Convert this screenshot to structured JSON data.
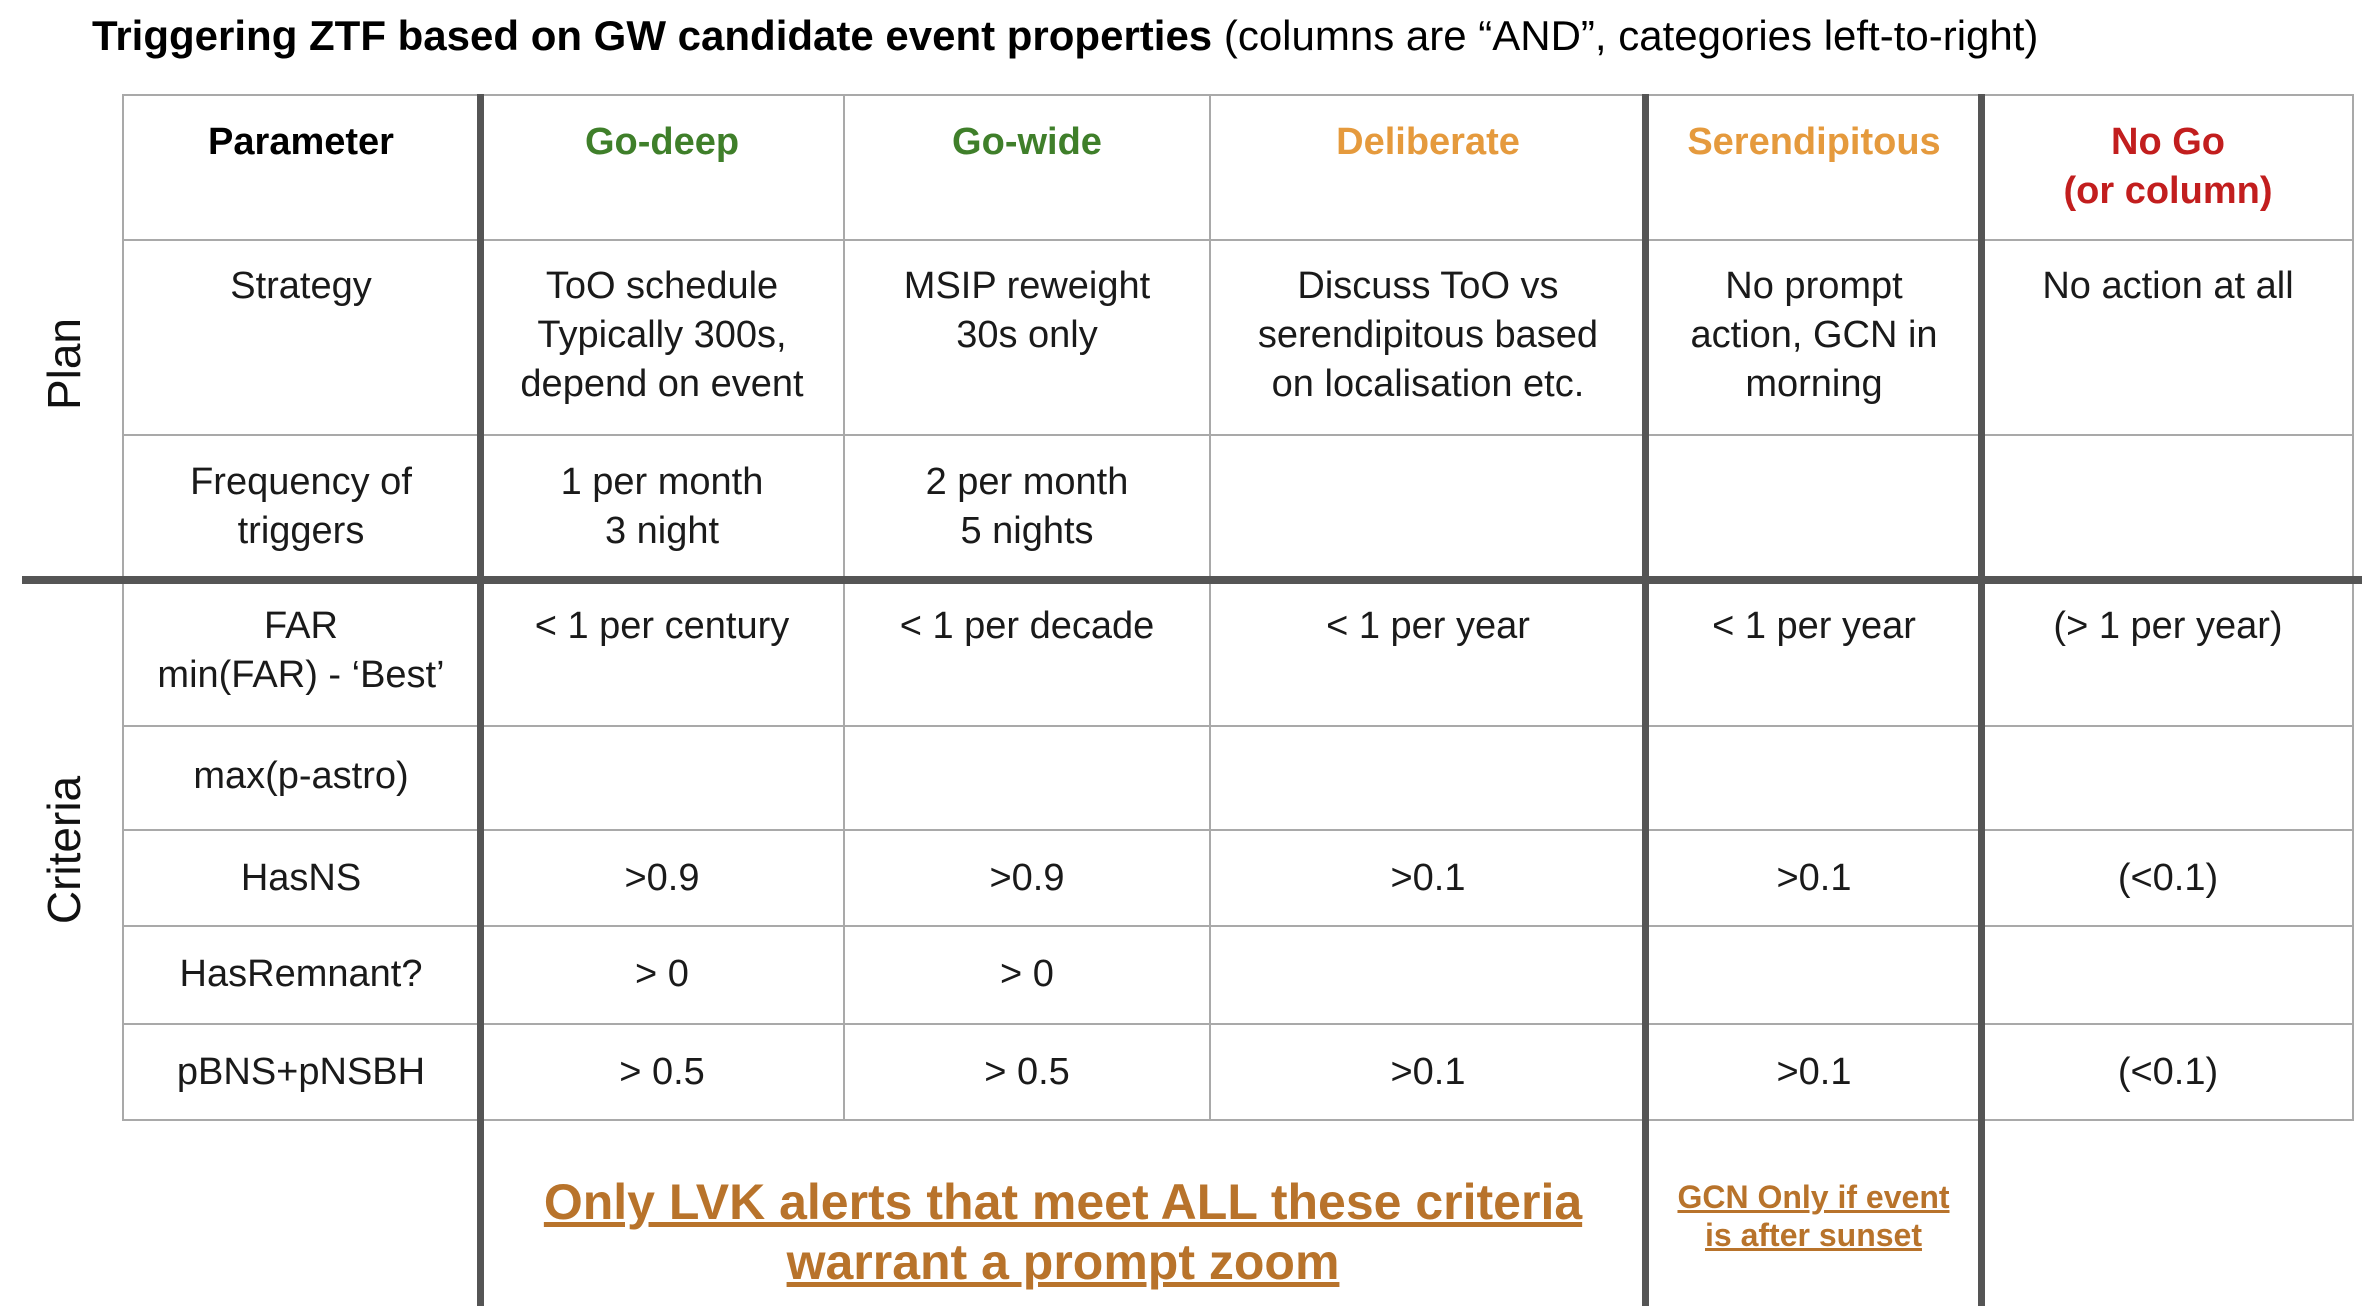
{
  "title": {
    "bold": "Triggering ZTF based on GW candidate event properties",
    "rest": " (columns are “AND”, categories left-to-right)"
  },
  "row_groups": {
    "plan": "Plan",
    "criteria": "Criteria"
  },
  "headers": {
    "parameter": "Parameter",
    "go_deep": "Go-deep",
    "go_wide": "Go-wide",
    "deliberate": "Deliberate",
    "serendipitous": "Serendipitous",
    "no_go": "No Go\n(or column)"
  },
  "rows": {
    "strategy": {
      "label": "Strategy",
      "go_deep": "ToO schedule\nTypically 300s,\ndepend on event",
      "go_wide": "MSIP reweight\n30s only",
      "deliberate": "Discuss ToO vs\nserendipitous based\non localisation etc.",
      "serendipitous": "No prompt\naction, GCN in\nmorning",
      "no_go": "No action at all"
    },
    "frequency": {
      "label": "Frequency of\ntriggers",
      "go_deep": "1 per month\n3 night",
      "go_wide": "2 per month\n5 nights",
      "deliberate": "",
      "serendipitous": "",
      "no_go": ""
    },
    "far": {
      "label": "FAR\nmin(FAR) - ‘Best’",
      "go_deep": "< 1 per century",
      "go_wide": "< 1 per decade",
      "deliberate": "< 1 per year",
      "serendipitous": "< 1 per year",
      "no_go": "(> 1 per year)"
    },
    "pastro": {
      "label": "max(p-astro)",
      "go_deep": "",
      "go_wide": "",
      "deliberate": "",
      "serendipitous": "",
      "no_go": ""
    },
    "hasns": {
      "label": "HasNS",
      "go_deep": ">0.9",
      "go_wide": ">0.9",
      "deliberate": ">0.1",
      "serendipitous": ">0.1",
      "no_go": "(<0.1)"
    },
    "hasremnant": {
      "label": "HasRemnant?",
      "go_deep": "> 0",
      "go_wide": "> 0",
      "deliberate": "",
      "serendipitous": "",
      "no_go": ""
    },
    "pbns": {
      "label": "pBNS+pNSBH",
      "go_deep": "> 0.5",
      "go_wide": "> 0.5",
      "deliberate": ">0.1",
      "serendipitous": ">0.1",
      "no_go": "(<0.1)"
    }
  },
  "notes": {
    "main": "Only LVK alerts that meet ALL these criteria\nwarrant a prompt zoom",
    "gcn": "GCN Only if event\nis after sunset"
  },
  "colors": {
    "green": "#3f7f2a",
    "orange": "#e59a3d",
    "red": "#c21e1e",
    "note": "#b8732b"
  }
}
